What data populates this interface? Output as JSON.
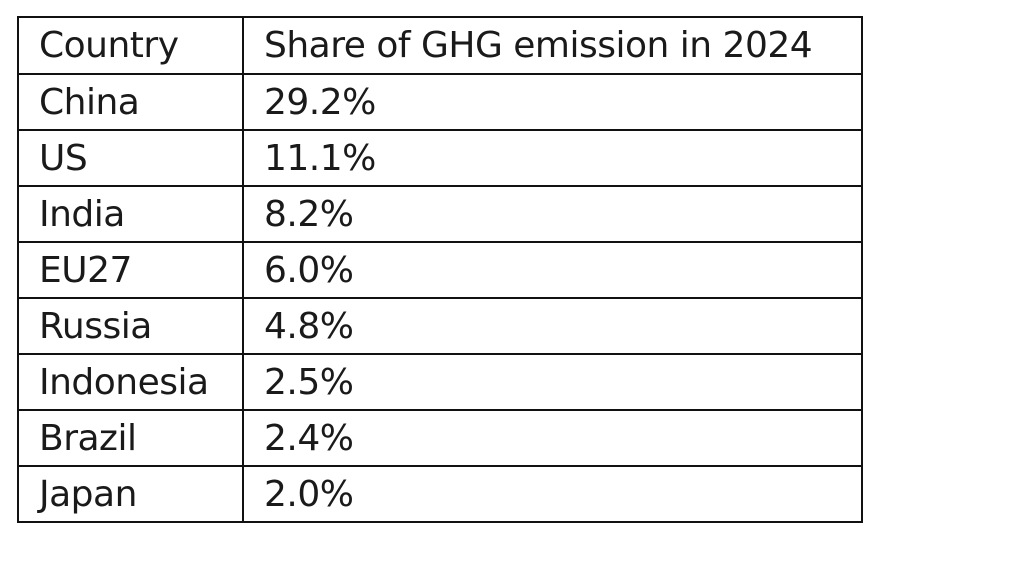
{
  "table": {
    "headers": [
      "Country",
      "Share of GHG emission in 2024"
    ],
    "rows": [
      [
        "China",
        "29.2%"
      ],
      [
        "US",
        "11.1%"
      ],
      [
        "India",
        "8.2%"
      ],
      [
        "EU27",
        "6.0%"
      ],
      [
        "Russia",
        "4.8%"
      ],
      [
        "Indonesia",
        "2.5%"
      ],
      [
        "Brazil",
        "2.4%"
      ],
      [
        "Japan",
        "2.0%"
      ]
    ]
  }
}
